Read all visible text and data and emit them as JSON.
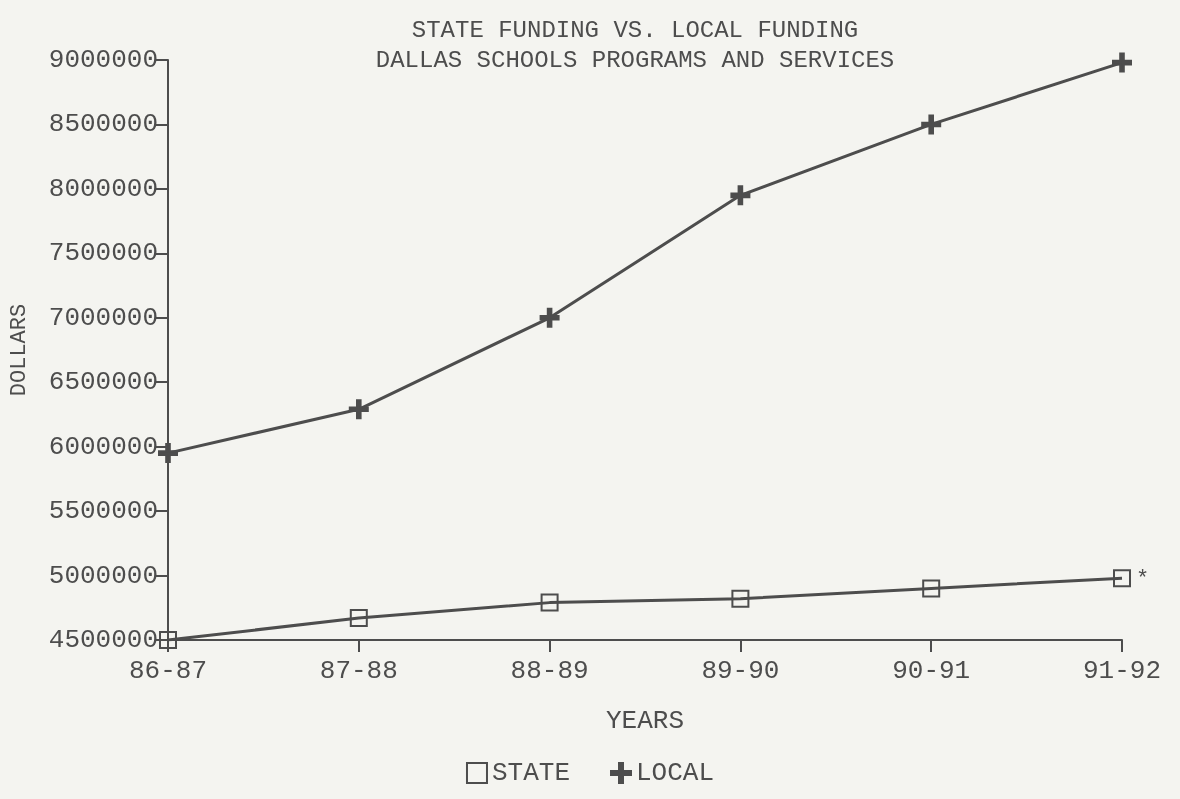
{
  "chart_data": {
    "type": "line",
    "title": "STATE FUNDING VS. LOCAL FUNDING\nDALLAS SCHOOLS PROGRAMS AND SERVICES",
    "xlabel": "YEARS",
    "ylabel": "DOLLARS",
    "categories": [
      "86-87",
      "87-88",
      "88-89",
      "89-90",
      "90-91",
      "91-92"
    ],
    "series": [
      {
        "name": "STATE",
        "color": "#4d4d4d",
        "marker": "square",
        "values": [
          4500000,
          4670000,
          4790000,
          4820000,
          4900000,
          4980000
        ]
      },
      {
        "name": "LOCAL",
        "color": "#4d4d4d",
        "marker": "cross",
        "values": [
          5950000,
          6290000,
          7000000,
          7950000,
          8500000,
          8980000
        ]
      }
    ],
    "ylim": [
      4500000,
      9000000
    ],
    "yticks": [
      4500000,
      5000000,
      5500000,
      6000000,
      6500000,
      7000000,
      7500000,
      8000000,
      8500000,
      9000000
    ],
    "grid": false,
    "legend": "bottom",
    "line_style": "solid",
    "annotations": [
      {
        "text": "*",
        "x": "91-92",
        "y": 4980000
      }
    ]
  }
}
